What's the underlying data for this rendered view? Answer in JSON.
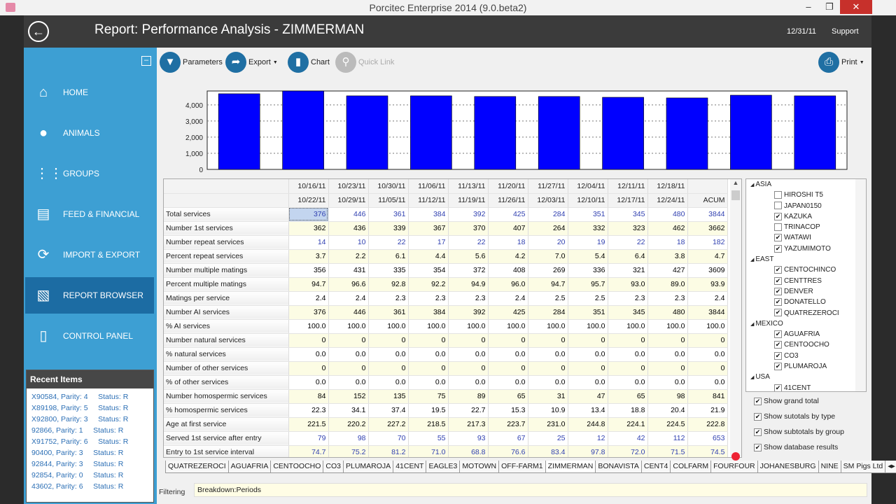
{
  "window": {
    "title": "Porcitec Enterprise 2014 (9.0.beta2)",
    "minimize": "–",
    "restore": "❐",
    "close": "✕"
  },
  "header": {
    "title": "Report: Performance Analysis - ZIMMERMAN",
    "date": "12/31/11",
    "support": "Support"
  },
  "sidebar": {
    "items": [
      {
        "label": "HOME",
        "icon": "⌂"
      },
      {
        "label": "ANIMALS",
        "icon": "●"
      },
      {
        "label": "GROUPS",
        "icon": "⋮⋮"
      },
      {
        "label": "FEED & FINANCIAL",
        "icon": "▤"
      },
      {
        "label": "IMPORT & EXPORT",
        "icon": "⟳"
      },
      {
        "label": "REPORT BROWSER",
        "icon": "▧"
      },
      {
        "label": "CONTROL PANEL",
        "icon": "▯"
      }
    ],
    "selected": "REPORT BROWSER"
  },
  "recent": {
    "title": "Recent Items",
    "items": [
      "X90584, Parity: 4     Status: R",
      "X89198, Parity: 5     Status: R",
      "X92800, Parity: 3     Status: R",
      "92866, Parity: 1     Status: R",
      "X91752, Parity: 6     Status: R",
      "90400, Parity: 3     Status: R",
      "92844, Parity: 3     Status: R",
      "92854, Parity: 0     Status: R",
      "43602, Parity: 6     Status: R"
    ]
  },
  "toolbar": {
    "parameters": "Parameters",
    "export": "Export",
    "chart": "Chart",
    "quick_link": "Quick Link",
    "print": "Print"
  },
  "chart_data": {
    "type": "bar",
    "categories": [
      "10/16/11",
      "10/23/11",
      "10/30/11",
      "11/06/11",
      "11/13/11",
      "11/20/11",
      "11/27/11",
      "12/04/11",
      "12/11/11",
      "12/18/11"
    ],
    "values": [
      4690,
      4860,
      4560,
      4560,
      4520,
      4520,
      4470,
      4430,
      4600,
      4560
    ],
    "ylim": [
      0,
      4860
    ],
    "yticks": [
      "0",
      "1,000",
      "2,000",
      "3,000",
      "4,000"
    ],
    "ytick_values": [
      0,
      1000,
      2000,
      3000,
      4000
    ],
    "color": "#0000ff",
    "grid": true
  },
  "table": {
    "header_from": [
      "10/16/11",
      "10/23/11",
      "10/30/11",
      "11/06/11",
      "11/13/11",
      "11/20/11",
      "11/27/11",
      "12/04/11",
      "12/11/11",
      "12/18/11",
      ""
    ],
    "header_to": [
      "10/22/11",
      "10/29/11",
      "11/05/11",
      "11/12/11",
      "11/19/11",
      "11/26/11",
      "12/03/11",
      "12/10/11",
      "12/17/11",
      "12/24/11",
      "ACUM"
    ],
    "rows": [
      {
        "label": "Total services",
        "blue": true,
        "values": [
          "376",
          "446",
          "361",
          "384",
          "392",
          "425",
          "284",
          "351",
          "345",
          "480",
          "3844"
        ]
      },
      {
        "label": "Number 1st services",
        "values": [
          "362",
          "436",
          "339",
          "367",
          "370",
          "407",
          "264",
          "332",
          "323",
          "462",
          "3662"
        ]
      },
      {
        "label": "Number repeat services",
        "blue": true,
        "values": [
          "14",
          "10",
          "22",
          "17",
          "22",
          "18",
          "20",
          "19",
          "22",
          "18",
          "182"
        ]
      },
      {
        "label": "Percent repeat services",
        "values": [
          "3.7",
          "2.2",
          "6.1",
          "4.4",
          "5.6",
          "4.2",
          "7.0",
          "5.4",
          "6.4",
          "3.8",
          "4.7"
        ]
      },
      {
        "label": "Number multiple matings",
        "values": [
          "356",
          "431",
          "335",
          "354",
          "372",
          "408",
          "269",
          "336",
          "321",
          "427",
          "3609"
        ]
      },
      {
        "label": "Percent multiple matings",
        "values": [
          "94.7",
          "96.6",
          "92.8",
          "92.2",
          "94.9",
          "96.0",
          "94.7",
          "95.7",
          "93.0",
          "89.0",
          "93.9"
        ]
      },
      {
        "label": "Matings per service",
        "values": [
          "2.4",
          "2.4",
          "2.3",
          "2.3",
          "2.3",
          "2.4",
          "2.5",
          "2.5",
          "2.3",
          "2.3",
          "2.4"
        ]
      },
      {
        "label": "Number AI services",
        "values": [
          "376",
          "446",
          "361",
          "384",
          "392",
          "425",
          "284",
          "351",
          "345",
          "480",
          "3844"
        ]
      },
      {
        "label": "% AI services",
        "values": [
          "100.0",
          "100.0",
          "100.0",
          "100.0",
          "100.0",
          "100.0",
          "100.0",
          "100.0",
          "100.0",
          "100.0",
          "100.0"
        ]
      },
      {
        "label": "Number natural services",
        "values": [
          "0",
          "0",
          "0",
          "0",
          "0",
          "0",
          "0",
          "0",
          "0",
          "0",
          "0"
        ]
      },
      {
        "label": "% natural services",
        "values": [
          "0.0",
          "0.0",
          "0.0",
          "0.0",
          "0.0",
          "0.0",
          "0.0",
          "0.0",
          "0.0",
          "0.0",
          "0.0"
        ]
      },
      {
        "label": "Number of other services",
        "values": [
          "0",
          "0",
          "0",
          "0",
          "0",
          "0",
          "0",
          "0",
          "0",
          "0",
          "0"
        ]
      },
      {
        "label": "% of other services",
        "values": [
          "0.0",
          "0.0",
          "0.0",
          "0.0",
          "0.0",
          "0.0",
          "0.0",
          "0.0",
          "0.0",
          "0.0",
          "0.0"
        ]
      },
      {
        "label": "Number homospermic services",
        "values": [
          "84",
          "152",
          "135",
          "75",
          "89",
          "65",
          "31",
          "47",
          "65",
          "98",
          "841"
        ]
      },
      {
        "label": "% homospermic services",
        "values": [
          "22.3",
          "34.1",
          "37.4",
          "19.5",
          "22.7",
          "15.3",
          "10.9",
          "13.4",
          "18.8",
          "20.4",
          "21.9"
        ]
      },
      {
        "label": "Age at first service",
        "values": [
          "221.5",
          "220.2",
          "227.2",
          "218.5",
          "217.3",
          "223.7",
          "231.0",
          "244.8",
          "224.1",
          "224.5",
          "222.8"
        ]
      },
      {
        "label": "Served 1st service after entry",
        "blue": true,
        "values": [
          "79",
          "98",
          "70",
          "55",
          "93",
          "67",
          "25",
          "12",
          "42",
          "112",
          "653"
        ]
      },
      {
        "label": "Entry to 1st service interval",
        "blue": true,
        "values": [
          "74.7",
          "75.2",
          "81.2",
          "71.0",
          "68.8",
          "76.6",
          "83.4",
          "97.8",
          "72.0",
          "71.5",
          "74.5"
        ]
      }
    ]
  },
  "tree": [
    {
      "group": "ASIA",
      "items": [
        {
          "label": "HIROSHI T5",
          "checked": false
        },
        {
          "label": "JAPAN0150",
          "checked": false
        },
        {
          "label": "KAZUKA",
          "checked": true
        },
        {
          "label": "TRINACOP",
          "checked": false
        },
        {
          "label": "WATAWI",
          "checked": true
        },
        {
          "label": "YAZUMIMOTO",
          "checked": true
        }
      ]
    },
    {
      "group": "EAST",
      "items": [
        {
          "label": "CENTOCHINCO",
          "checked": true
        },
        {
          "label": "CENTTRES",
          "checked": true
        },
        {
          "label": "DENVER",
          "checked": true
        },
        {
          "label": "DONATELLO",
          "checked": true
        },
        {
          "label": "QUATREZEROCI",
          "checked": true
        }
      ]
    },
    {
      "group": "MEXICO",
      "items": [
        {
          "label": "AGUAFRIA",
          "checked": true
        },
        {
          "label": "CENTOOCHO",
          "checked": true
        },
        {
          "label": "CO3",
          "checked": true
        },
        {
          "label": "PLUMAROJA",
          "checked": true
        }
      ]
    },
    {
      "group": "USA",
      "items": [
        {
          "label": "41CENT",
          "checked": true
        }
      ]
    }
  ],
  "options": [
    "Show grand total",
    "Show sutotals by type",
    "Show subtotals by group",
    "Show database results"
  ],
  "tabs": [
    "QUATREZEROCI",
    "AGUAFRIA",
    "CENTOOCHO",
    "CO3",
    "PLUMAROJA",
    "41CENT",
    "EAGLE3",
    "MOTOWN",
    "OFF-FARM1",
    "ZIMMERMAN",
    "BONAVISTA",
    "CENT4",
    "COLFARM",
    "FOURFOUR",
    "JOHANESBURG",
    "NINE",
    "SM Pigs Ltd"
  ],
  "active_tab": "ZIMMERMAN",
  "filter": {
    "label": "Filtering",
    "value": "Breakdown:Periods"
  }
}
